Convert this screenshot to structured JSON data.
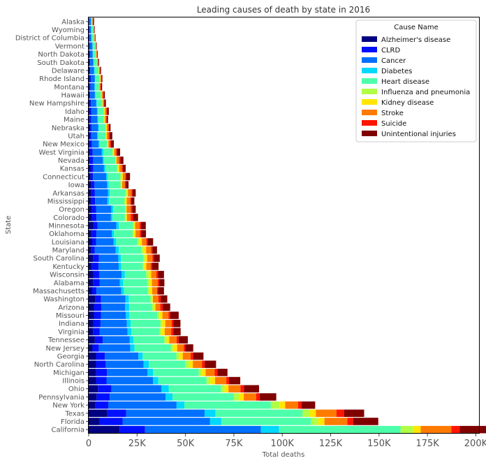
{
  "chart_data": {
    "type": "bar",
    "orientation": "horizontal",
    "stacked": true,
    "title": "Leading causes of death by state in 2016",
    "xlabel": "Total deaths",
    "ylabel": "State",
    "xlim": [
      0,
      202000
    ],
    "xticks": [
      0,
      25000,
      50000,
      75000,
      100000,
      125000,
      150000,
      175000,
      200000
    ],
    "xtick_labels": [
      "0",
      "25K",
      "50K",
      "75K",
      "100K",
      "125K",
      "150K",
      "175K",
      "200K"
    ],
    "grid": false,
    "legend": {
      "title": "Cause Name",
      "placement": "top-right"
    },
    "series": [
      {
        "name": "Alzheimer's disease",
        "color": "#000080"
      },
      {
        "name": "CLRD",
        "color": "#0010ff"
      },
      {
        "name": "Cancer",
        "color": "#0070ff"
      },
      {
        "name": "Diabetes",
        "color": "#00d8ff"
      },
      {
        "name": "Heart disease",
        "color": "#4dffaa"
      },
      {
        "name": "Influenza and pneumonia",
        "color": "#b0ff46"
      },
      {
        "name": "Kidney disease",
        "color": "#ffe600"
      },
      {
        "name": "Stroke",
        "color": "#ff7a00"
      },
      {
        "name": "Suicide",
        "color": "#ff1500"
      },
      {
        "name": "Unintentional injuries",
        "color": "#800000"
      }
    ],
    "categories": [
      "Alaska",
      "Wyoming",
      "District of Columbia",
      "Vermont",
      "North Dakota",
      "South Dakota",
      "Delaware",
      "Rhode Island",
      "Montana",
      "Hawaii",
      "New Hampshire",
      "Idaho",
      "Maine",
      "Nebraska",
      "Utah",
      "New Mexico",
      "West Virginia",
      "Nevada",
      "Kansas",
      "Connecticut",
      "Iowa",
      "Arkansas",
      "Mississippi",
      "Oregon",
      "Colorado",
      "Minnesota",
      "Oklahoma",
      "Louisiana",
      "Maryland",
      "South Carolina",
      "Kentucky",
      "Wisconsin",
      "Alabama",
      "Massachusetts",
      "Washington",
      "Arizona",
      "Missouri",
      "Indiana",
      "Virginia",
      "Tennessee",
      "New Jersey",
      "Georgia",
      "North Carolina",
      "Michigan",
      "Illinois",
      "Ohio",
      "Pennsylvania",
      "New York",
      "Texas",
      "Florida",
      "California"
    ],
    "values": [
      [
        60,
        250,
        800,
        120,
        600,
        60,
        30,
        200,
        150,
        500
      ],
      [
        150,
        300,
        800,
        100,
        1000,
        100,
        20,
        180,
        140,
        300
      ],
      [
        200,
        200,
        1000,
        100,
        1300,
        100,
        50,
        200,
        60,
        300
      ],
      [
        300,
        350,
        1300,
        120,
        1300,
        60,
        70,
        250,
        120,
        280
      ],
      [
        400,
        350,
        1300,
        200,
        1400,
        150,
        90,
        350,
        120,
        300
      ],
      [
        400,
        400,
        1600,
        200,
        1600,
        150,
        100,
        350,
        150,
        400
      ],
      [
        350,
        450,
        2000,
        250,
        2000,
        150,
        200,
        400,
        130,
        450
      ],
      [
        500,
        600,
        2100,
        150,
        2300,
        250,
        200,
        400,
        130,
        450
      ],
      [
        400,
        600,
        2000,
        250,
        2000,
        200,
        150,
        500,
        250,
        600
      ],
      [
        500,
        300,
        2400,
        300,
        2700,
        400,
        150,
        800,
        200,
        600
      ],
      [
        500,
        700,
        2700,
        300,
        2700,
        300,
        150,
        500,
        250,
        800
      ],
      [
        600,
        800,
        2900,
        400,
        3100,
        300,
        300,
        800,
        300,
        900
      ],
      [
        450,
        800,
        3300,
        400,
        2800,
        300,
        350,
        650,
        250,
        700
      ],
      [
        800,
        750,
        3300,
        500,
        3300,
        350,
        400,
        800,
        250,
        850
      ],
      [
        700,
        650,
        3000,
        600,
        3700,
        400,
        350,
        900,
        600,
        1300
      ],
      [
        500,
        1100,
        3500,
        600,
        3800,
        400,
        300,
        800,
        500,
        1500
      ],
      [
        650,
        1400,
        4700,
        850,
        4600,
        500,
        500,
        1000,
        350,
        1700
      ],
      [
        500,
        1800,
        5000,
        600,
        5900,
        300,
        300,
        1300,
        650,
        1600
      ],
      [
        900,
        1500,
        5500,
        800,
        5900,
        600,
        600,
        1300,
        500,
        1500
      ],
      [
        950,
        1300,
        6800,
        700,
        6600,
        600,
        700,
        1300,
        400,
        2000
      ],
      [
        1300,
        1700,
        6500,
        800,
        6100,
        600,
        300,
        1400,
        500,
        1400
      ],
      [
        1400,
        1800,
        6800,
        900,
        8000,
        800,
        600,
        1800,
        500,
        1700
      ],
      [
        1300,
        2000,
        6300,
        900,
        7900,
        600,
        700,
        1800,
        400,
        1700
      ],
      [
        1600,
        2200,
        7900,
        1000,
        6200,
        400,
        300,
        2200,
        700,
        1800
      ],
      [
        1600,
        2400,
        7500,
        800,
        6400,
        600,
        500,
        1900,
        1200,
        2600
      ],
      [
        2500,
        2000,
        9800,
        1300,
        7300,
        400,
        700,
        2300,
        700,
        2500
      ],
      [
        1400,
        2600,
        7900,
        1200,
        9600,
        700,
        800,
        2200,
        700,
        2500
      ],
      [
        1800,
        2000,
        9000,
        1400,
        11000,
        1100,
        1200,
        2300,
        700,
        2800
      ],
      [
        1300,
        1800,
        10800,
        1700,
        11600,
        1300,
        1200,
        2600,
        600,
        2400
      ],
      [
        2300,
        3000,
        10000,
        1300,
        11600,
        900,
        1100,
        2700,
        800,
        3000
      ],
      [
        1700,
        3400,
        10400,
        1400,
        11000,
        700,
        1200,
        2300,
        700,
        3300
      ],
      [
        2500,
        2900,
        11600,
        1700,
        11000,
        1300,
        1300,
        2700,
        900,
        3000
      ],
      [
        2300,
        3300,
        10500,
        1700,
        12400,
        1300,
        1200,
        2900,
        800,
        2700
      ],
      [
        1800,
        2200,
        12800,
        1400,
        12100,
        1100,
        1400,
        2500,
        600,
        3000
      ],
      [
        3500,
        2900,
        12600,
        1800,
        11100,
        1000,
        300,
        2800,
        1200,
        3400
      ],
      [
        2700,
        3800,
        12300,
        2100,
        11900,
        1100,
        600,
        2400,
        1300,
        3900
      ],
      [
        2700,
        3600,
        12900,
        1700,
        14500,
        1300,
        1400,
        3100,
        1000,
        4300
      ],
      [
        2500,
        3600,
        13600,
        2000,
        15300,
        1000,
        1600,
        3200,
        900,
        3700
      ],
      [
        2200,
        3400,
        14500,
        1900,
        14600,
        1200,
        1500,
        3300,
        1200,
        3700
      ],
      [
        3200,
        4000,
        14000,
        1900,
        16000,
        1100,
        1400,
        3800,
        1100,
        4700
      ],
      [
        2000,
        3300,
        16200,
        2200,
        18700,
        1300,
        2000,
        3400,
        800,
        4100
      ],
      [
        3800,
        4600,
        17300,
        2200,
        17400,
        1500,
        1800,
        4100,
        1300,
        5300
      ],
      [
        3800,
        5000,
        19500,
        2800,
        18800,
        2000,
        1900,
        4700,
        1500,
        5800
      ],
      [
        3900,
        5500,
        21000,
        2900,
        23600,
        1600,
        1900,
        4700,
        1400,
        5200
      ],
      [
        3800,
        5400,
        24000,
        2800,
        24900,
        1900,
        2500,
        5800,
        1400,
        5800
      ],
      [
        4800,
        7000,
        25700,
        3800,
        27100,
        1800,
        2000,
        6200,
        1800,
        7800
      ],
      [
        4100,
        6800,
        28800,
        3600,
        31700,
        2700,
        2400,
        6400,
        1800,
        8600
      ],
      [
        3400,
        6700,
        35300,
        4000,
        44700,
        4600,
        2800,
        6700,
        1700,
        7100
      ],
      [
        9600,
        9800,
        40500,
        5600,
        45000,
        3500,
        3400,
        10600,
        3900,
        10400
      ],
      [
        5400,
        12100,
        45200,
        5800,
        46500,
        3600,
        3200,
        11800,
        3100,
        12900
      ],
      [
        16000,
        13100,
        59900,
        9300,
        62800,
        6500,
        3900,
        15800,
        4400,
        13700
      ]
    ]
  }
}
